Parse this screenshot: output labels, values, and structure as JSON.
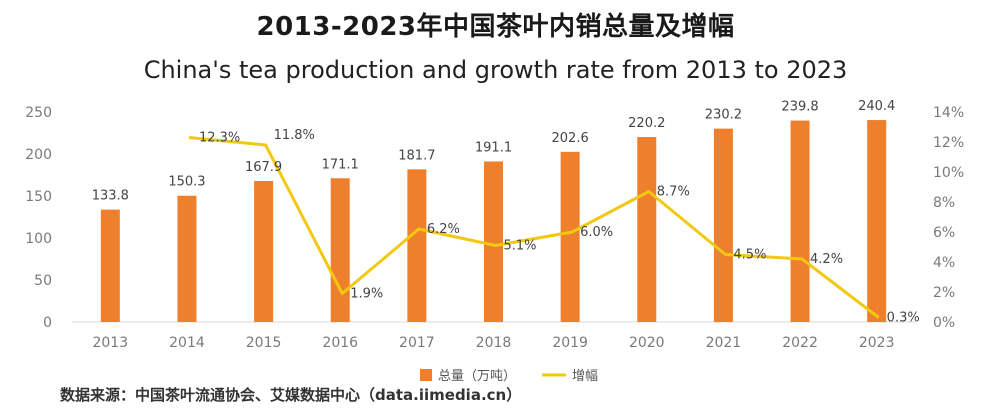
{
  "header": {
    "title": "2013-2023年中国茶叶内销总量及增幅",
    "subtitle": "China's tea production and growth rate from 2013 to 2023"
  },
  "source": "数据来源：中国茶叶流通协会、艾媒数据中心（data.iimedia.cn）",
  "colors": {
    "bar": "#EE7F2D",
    "line": "#F2C811",
    "axis_text": "#7a7a7a",
    "grid": "#d9d9d9"
  },
  "chart_data": {
    "type": "bar",
    "categories": [
      "2013",
      "2014",
      "2015",
      "2016",
      "2017",
      "2018",
      "2019",
      "2020",
      "2021",
      "2022",
      "2023"
    ],
    "series": [
      {
        "name": "总量（万吨）",
        "type": "bar",
        "axis": "left",
        "values": [
          133.8,
          150.3,
          167.9,
          171.1,
          181.7,
          191.1,
          202.6,
          220.2,
          230.2,
          239.8,
          240.4
        ],
        "labels": [
          "133.8",
          "150.3",
          "167.9",
          "171.1",
          "181.7",
          "191.1",
          "202.6",
          "220.2",
          "230.2",
          "239.8",
          "240.4"
        ]
      },
      {
        "name": "增幅",
        "type": "line",
        "axis": "right",
        "values": [
          null,
          12.3,
          11.8,
          1.9,
          6.2,
          5.1,
          6.0,
          8.7,
          4.5,
          4.2,
          0.3
        ],
        "labels": [
          "",
          "12.3%",
          "11.8%",
          "1.9%",
          "6.2%",
          "5.1%",
          "6.0%",
          "8.7%",
          "4.5%",
          "4.2%",
          "0.3%"
        ]
      }
    ],
    "ylim_left": [
      0,
      250
    ],
    "left_ticks": [
      "0",
      "50",
      "100",
      "150",
      "200",
      "250"
    ],
    "ylim_right": [
      0,
      14
    ],
    "right_ticks": [
      "0%",
      "2%",
      "4%",
      "6%",
      "8%",
      "10%",
      "12%",
      "14%"
    ],
    "grid": false,
    "legend_position": "bottom-center"
  }
}
